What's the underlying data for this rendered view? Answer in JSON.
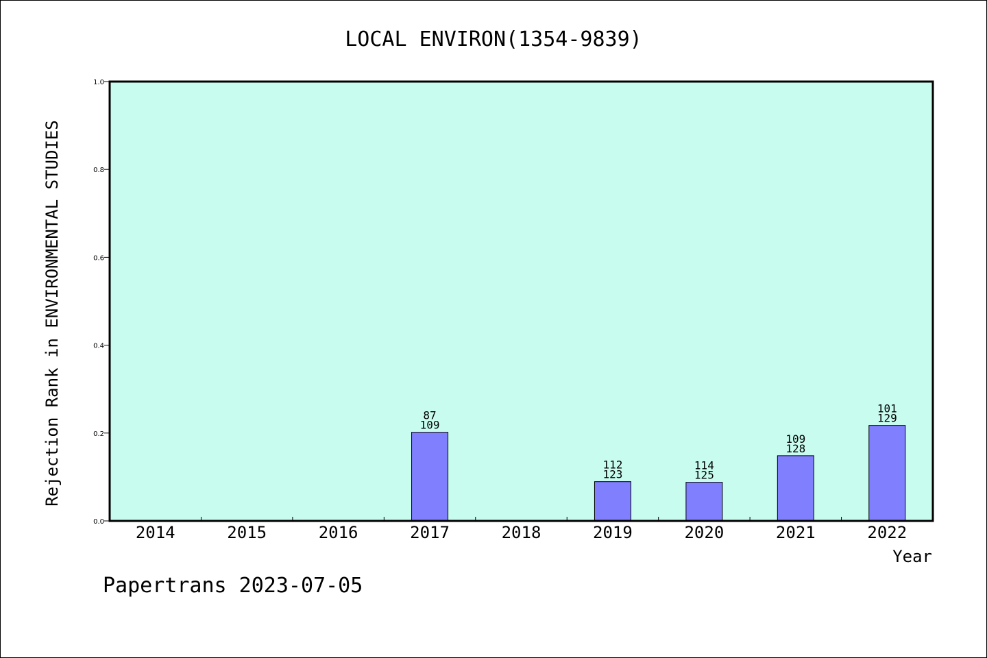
{
  "chart_data": {
    "type": "bar",
    "title": "LOCAL ENVIRON(1354-9839)",
    "xlabel": "Year",
    "ylabel": "Rejection Rank in ENVIRONMENTAL STUDIES",
    "categories": [
      "2014",
      "2015",
      "2016",
      "2017",
      "2018",
      "2019",
      "2020",
      "2021",
      "2022"
    ],
    "values": [
      null,
      null,
      null,
      0.2018,
      null,
      0.0894,
      0.088,
      0.1484,
      0.2174
    ],
    "bar_labels": [
      null,
      null,
      null,
      [
        "87",
        "109"
      ],
      null,
      [
        "112",
        "123"
      ],
      [
        "114",
        "125"
      ],
      [
        "109",
        "128"
      ],
      [
        "101",
        "129"
      ]
    ],
    "ylim": [
      0,
      1.0
    ],
    "yticks": [
      "0.0",
      "0.2",
      "0.4",
      "0.6",
      "0.8",
      "1.0"
    ],
    "grid": false,
    "plot_background": "#c8fcee",
    "bar_color": "#8080ff",
    "footer": "Papertrans 2023-07-05"
  }
}
